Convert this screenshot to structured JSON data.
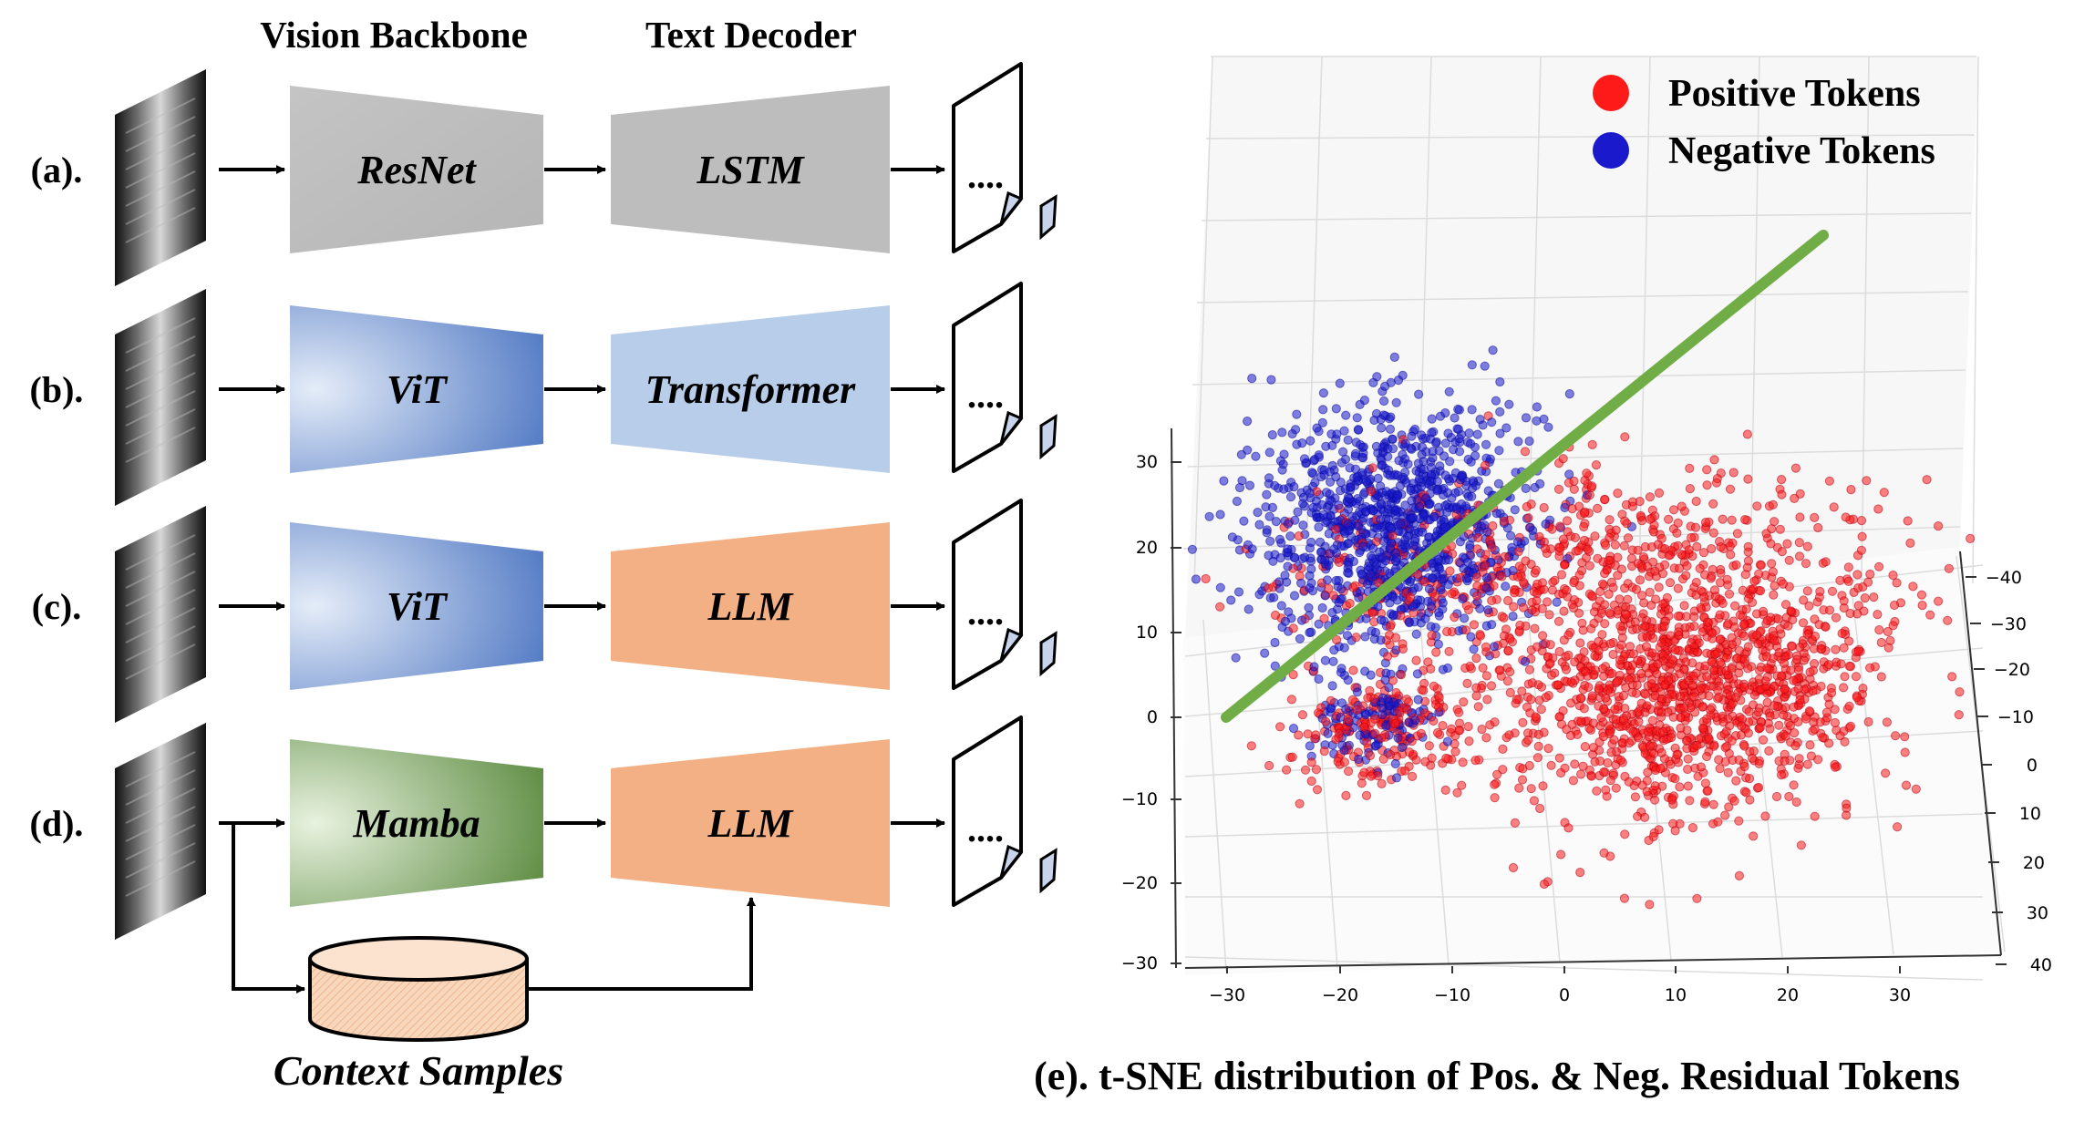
{
  "left_panel": {
    "headers": {
      "vision": "Vision Backbone",
      "text": "Text Decoder"
    },
    "rows": [
      {
        "label": "(a).",
        "encoder": "ResNet",
        "decoder": "LSTM",
        "encoder_color": "#bdbdbd",
        "decoder_color": "#bdbdbd"
      },
      {
        "label": "(b).",
        "encoder": "ViT",
        "decoder": "Transformer",
        "encoder_color": "#5b82c8",
        "decoder_color": "#b8cde9"
      },
      {
        "label": "(c).",
        "encoder": "ViT",
        "decoder": "LLM",
        "encoder_color": "#5b82c8",
        "decoder_color": "#f2b084"
      },
      {
        "label": "(d).",
        "encoder": "Mamba",
        "decoder": "LLM",
        "encoder_color": "#5c8a3e",
        "decoder_color": "#f2b084"
      }
    ],
    "doc_text": "....",
    "context_label": "Context Samples",
    "database_color": "#f7d3b7"
  },
  "plot": {
    "caption": "(e). t-SNE distribution of Pos. & Neg. Residual Tokens",
    "legend": [
      {
        "label": "Positive Tokens",
        "color": "#ff1a1a"
      },
      {
        "label": "Negative Tokens",
        "color": "#1a1acc"
      }
    ],
    "x_ticks": [
      "−30",
      "−20",
      "−10",
      "0",
      "10",
      "20",
      "30"
    ],
    "y_ticks": [
      "−40",
      "−30",
      "−20",
      "−10",
      "0",
      "10",
      "20",
      "30",
      "40"
    ],
    "z_ticks": [
      "30",
      "20",
      "10",
      "0",
      "−10",
      "−20",
      "−30"
    ],
    "separator_color": "#70ad47"
  },
  "chart_data": {
    "type": "scatter",
    "title": "(e). t-SNE distribution of Pos. & Neg. Residual Tokens",
    "xlim": [
      -30,
      30
    ],
    "ylim": [
      -40,
      40
    ],
    "zlim": [
      -30,
      30
    ],
    "grid": true,
    "legend_position": "top-right",
    "series": [
      {
        "name": "Positive Tokens",
        "color": "#ff1a1a",
        "clusters": [
          {
            "center": [
              10,
              10,
              8
            ],
            "spread": [
              9,
              8,
              6
            ],
            "count": 1400
          },
          {
            "center": [
              -15,
              -15,
              -3
            ],
            "spread": [
              4,
              3,
              3
            ],
            "count": 200
          },
          {
            "center": [
              0,
              -10,
              15
            ],
            "spread": [
              13,
              6,
              4
            ],
            "count": 500
          }
        ]
      },
      {
        "name": "Negative Tokens",
        "color": "#1a1acc",
        "clusters": [
          {
            "center": [
              -15,
              -5,
              22
            ],
            "spread": [
              6,
              5,
              6
            ],
            "count": 1100
          },
          {
            "center": [
              -16,
              -15,
              -2
            ],
            "spread": [
              3,
              2,
              2
            ],
            "count": 120
          }
        ]
      }
    ],
    "separator": {
      "from": [
        -30,
        0,
        0
      ],
      "to": [
        22,
        0,
        35
      ]
    }
  }
}
